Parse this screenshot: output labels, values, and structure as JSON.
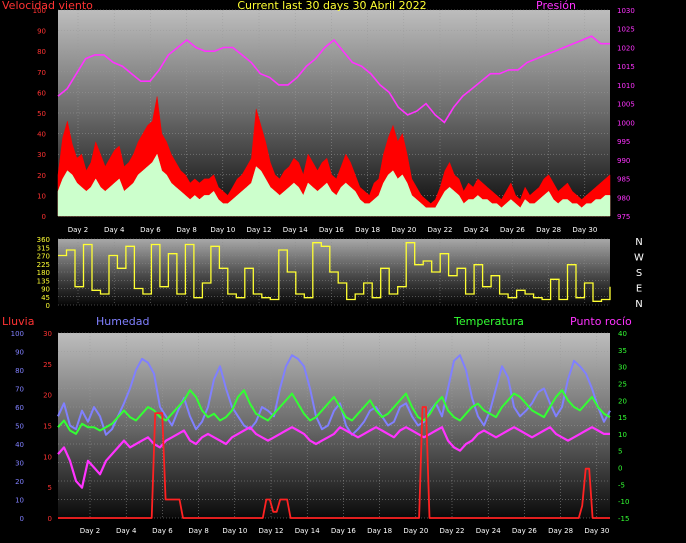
{
  "header": {
    "title": "Current last 30 days 30 Abril 2022",
    "label_left": "Velocidad viento",
    "label_right": "Presión"
  },
  "labels": {
    "lluvia": "Lluvia",
    "humedad": "Humedad",
    "temperatura": "Temperatura",
    "punto_rocio": "Punto rocío"
  },
  "colors": {
    "wind_gust": "#ff0000",
    "wind_avg": "#ccffcc",
    "pressure": "#ff33ff",
    "direction": "#ffff33",
    "rain": "#ff2222",
    "humidity": "#8080ff",
    "temperature": "#33ff33",
    "dewpoint": "#ff33ff",
    "axis_text_left": "#ff3333",
    "axis_text_right": "#ff33ff",
    "axis_hum": "#8080ff",
    "axis_temp": "#33ff33"
  },
  "chart_data": [
    {
      "type": "area",
      "title": "Current last 30 days 30 Abril 2022",
      "x_tick_labels": [
        "Day 2",
        "Day 4",
        "Day 6",
        "Day 8",
        "Day 10",
        "Day 12",
        "Day 14",
        "Day 16",
        "Day 18",
        "Day 20",
        "Day 22",
        "Day 24",
        "Day 26",
        "Day 28",
        "Day 30"
      ],
      "y_left": {
        "label": "Velocidad viento",
        "range": [
          0,
          100
        ],
        "ticks": [
          "0",
          "10",
          "20",
          "30",
          "40",
          "50",
          "60",
          "70",
          "80",
          "90",
          "100"
        ]
      },
      "y_right": {
        "label": "Presión",
        "range": [
          975,
          1030
        ],
        "ticks": [
          "975",
          "980",
          "985",
          "990",
          "995",
          "1000",
          "1005",
          "1010",
          "1015",
          "1020",
          "1025",
          "1030"
        ]
      },
      "series": [
        {
          "key": "gust",
          "values": [
            20,
            38,
            46,
            35,
            28,
            30,
            22,
            26,
            36,
            30,
            24,
            28,
            32,
            34,
            24,
            26,
            30,
            36,
            40,
            44,
            46,
            58,
            40,
            36,
            30,
            26,
            22,
            20,
            16,
            18,
            16,
            18,
            18,
            20,
            14,
            12,
            10,
            14,
            18,
            20,
            24,
            28,
            52,
            44,
            36,
            26,
            20,
            18,
            22,
            24,
            28,
            26,
            20,
            30,
            26,
            22,
            26,
            28,
            20,
            18,
            24,
            30,
            26,
            20,
            14,
            12,
            10,
            16,
            18,
            30,
            38,
            44,
            36,
            40,
            30,
            18,
            14,
            10,
            8,
            6,
            8,
            14,
            22,
            26,
            20,
            18,
            12,
            16,
            14,
            18,
            16,
            14,
            12,
            10,
            8,
            12,
            16,
            10,
            8,
            14,
            10,
            12,
            14,
            18,
            20,
            16,
            12,
            14,
            16,
            12,
            10,
            8,
            10,
            12,
            14,
            16,
            18,
            20
          ]
        },
        {
          "key": "avg",
          "values": [
            12,
            18,
            22,
            20,
            16,
            14,
            12,
            14,
            18,
            14,
            12,
            14,
            16,
            18,
            12,
            14,
            16,
            20,
            22,
            24,
            26,
            30,
            22,
            20,
            16,
            14,
            12,
            10,
            8,
            10,
            8,
            10,
            10,
            12,
            8,
            6,
            6,
            8,
            10,
            12,
            14,
            16,
            24,
            22,
            18,
            14,
            12,
            10,
            12,
            14,
            16,
            14,
            10,
            16,
            14,
            12,
            14,
            16,
            12,
            10,
            14,
            16,
            14,
            12,
            8,
            6,
            6,
            8,
            10,
            16,
            20,
            22,
            18,
            20,
            16,
            10,
            8,
            6,
            4,
            4,
            4,
            8,
            12,
            14,
            12,
            10,
            6,
            8,
            8,
            10,
            8,
            8,
            6,
            6,
            4,
            6,
            8,
            6,
            4,
            8,
            6,
            6,
            8,
            10,
            12,
            8,
            6,
            8,
            8,
            6,
            6,
            4,
            6,
            6,
            8,
            8,
            10,
            10
          ]
        },
        {
          "key": "pressure",
          "values": [
            1007,
            1009,
            1013,
            1017,
            1018,
            1018,
            1016,
            1015,
            1013,
            1011,
            1011,
            1014,
            1018,
            1020,
            1022,
            1020,
            1019,
            1019,
            1020,
            1020,
            1018,
            1016,
            1013,
            1012,
            1010,
            1010,
            1012,
            1015,
            1017,
            1020,
            1022,
            1019,
            1016,
            1015,
            1013,
            1010,
            1008,
            1004,
            1002,
            1003,
            1005,
            1002,
            1000,
            1004,
            1007,
            1009,
            1011,
            1013,
            1013,
            1014,
            1014,
            1016,
            1017,
            1018,
            1019,
            1020,
            1021,
            1022,
            1023,
            1021,
            1021
          ]
        }
      ]
    },
    {
      "type": "line",
      "title": "",
      "y_left": {
        "range": [
          0,
          360
        ],
        "ticks": [
          "0",
          "45",
          "90",
          "135",
          "180",
          "225",
          "270",
          "315",
          "360"
        ]
      },
      "direction_labels": [
        "N",
        "W",
        "S",
        "E",
        "N"
      ],
      "series": [
        {
          "key": "direction",
          "values": [
            270,
            300,
            100,
            330,
            80,
            60,
            270,
            200,
            320,
            90,
            60,
            330,
            100,
            280,
            60,
            330,
            40,
            120,
            320,
            200,
            60,
            40,
            200,
            60,
            40,
            30,
            300,
            180,
            60,
            40,
            340,
            320,
            180,
            120,
            30,
            60,
            120,
            40,
            200,
            60,
            100,
            340,
            220,
            240,
            180,
            280,
            160,
            200,
            60,
            220,
            100,
            160,
            60,
            40,
            80,
            60,
            40,
            30,
            140,
            30,
            220,
            40,
            120,
            20,
            30,
            100
          ]
        }
      ]
    },
    {
      "type": "line",
      "title": "",
      "x_tick_labels": [
        "Day 2",
        "Day 4",
        "Day 6",
        "Day 8",
        "Day 10",
        "Day 12",
        "Day 14",
        "Day 16",
        "Day 18",
        "Day 20",
        "Day 22",
        "Day 24",
        "Day 26",
        "Day 28",
        "Day 30"
      ],
      "y_left_outer": {
        "label": "Lluvia",
        "range": [
          0,
          100
        ],
        "ticks": [
          "0",
          "10",
          "20",
          "30",
          "40",
          "50",
          "60",
          "70",
          "80",
          "90",
          "100"
        ]
      },
      "y_left_inner": {
        "label": "Humedad",
        "range": [
          0,
          30
        ],
        "ticks": [
          "0",
          "5",
          "10",
          "15",
          "20",
          "25",
          "30"
        ]
      },
      "y_right": {
        "label": "Temperatura / Punto rocío",
        "range": [
          -15,
          40
        ],
        "ticks": [
          "-15",
          "-10",
          "-5",
          "0",
          "5",
          "10",
          "15",
          "20",
          "25",
          "30",
          "35",
          "40"
        ]
      },
      "series": [
        {
          "key": "rain",
          "values": [
            0,
            0,
            0,
            0,
            0,
            0,
            0,
            0,
            0,
            0,
            0,
            0,
            0,
            0,
            0,
            0,
            0,
            0,
            0,
            0,
            0,
            0,
            0,
            0,
            0,
            0,
            0,
            0,
            17,
            17,
            17,
            3,
            3,
            3,
            3,
            3,
            0,
            0,
            0,
            0,
            0,
            0,
            0,
            0,
            0,
            0,
            0,
            0,
            0,
            0,
            0,
            0,
            0,
            0,
            0,
            0,
            0,
            0,
            0,
            0,
            3,
            3,
            1,
            1,
            3,
            3,
            3,
            0,
            0,
            0,
            0,
            0,
            0,
            0,
            0,
            0,
            0,
            0,
            0,
            0,
            0,
            0,
            0,
            0,
            0,
            0,
            0,
            0,
            0,
            0,
            0,
            0,
            0,
            0,
            0,
            0,
            0,
            0,
            0,
            0,
            0,
            0,
            0,
            0,
            0,
            18,
            18,
            0,
            0,
            0,
            0,
            0,
            0,
            0,
            0,
            0,
            0,
            0,
            0,
            0,
            0,
            0,
            0,
            0,
            0,
            0,
            0,
            0,
            0,
            0,
            0,
            0,
            0,
            0,
            0,
            0,
            0,
            0,
            0,
            0,
            0,
            0,
            0,
            0,
            0,
            0,
            0,
            0,
            0,
            0,
            0,
            2,
            8,
            8,
            0,
            0,
            0,
            0,
            0,
            0
          ]
        },
        {
          "key": "humidity",
          "values": [
            55,
            62,
            50,
            48,
            58,
            52,
            60,
            55,
            45,
            48,
            55,
            62,
            70,
            80,
            86,
            84,
            78,
            60,
            55,
            50,
            58,
            65,
            55,
            48,
            52,
            60,
            75,
            82,
            70,
            60,
            55,
            50,
            48,
            52,
            60,
            58,
            55,
            70,
            82,
            88,
            86,
            82,
            70,
            55,
            48,
            50,
            58,
            62,
            50,
            45,
            48,
            52,
            58,
            60,
            55,
            50,
            52,
            60,
            62,
            55,
            50,
            52,
            58,
            62,
            55,
            70,
            85,
            88,
            80,
            65,
            55,
            50,
            58,
            70,
            82,
            76,
            60,
            55,
            58,
            62,
            68,
            70,
            62,
            55,
            60,
            75,
            85,
            82,
            78,
            70,
            60,
            52,
            58
          ]
        },
        {
          "key": "temperature",
          "values": [
            12,
            14,
            11,
            10,
            13,
            12,
            12,
            11,
            12,
            13,
            15,
            17,
            15,
            14,
            16,
            18,
            17,
            15,
            14,
            16,
            18,
            20,
            23,
            21,
            17,
            15,
            16,
            14,
            15,
            17,
            21,
            23,
            19,
            16,
            15,
            14,
            16,
            18,
            20,
            22,
            19,
            16,
            14,
            15,
            17,
            19,
            21,
            18,
            15,
            14,
            16,
            18,
            20,
            17,
            15,
            16,
            18,
            20,
            22,
            18,
            15,
            14,
            16,
            19,
            21,
            17,
            15,
            14,
            16,
            18,
            19,
            17,
            16,
            15,
            18,
            20,
            22,
            21,
            19,
            17,
            16,
            15,
            18,
            21,
            23,
            20,
            18,
            17,
            19,
            21,
            18,
            16,
            15
          ]
        },
        {
          "key": "dewpoint",
          "values": [
            4,
            6,
            2,
            -4,
            -6,
            2,
            0,
            -2,
            2,
            4,
            6,
            8,
            6,
            7,
            8,
            9,
            7,
            6,
            8,
            9,
            10,
            11,
            8,
            7,
            9,
            10,
            9,
            8,
            7,
            9,
            10,
            11,
            12,
            10,
            9,
            8,
            9,
            10,
            11,
            12,
            11,
            10,
            8,
            7,
            8,
            9,
            10,
            12,
            11,
            10,
            9,
            10,
            11,
            12,
            11,
            10,
            9,
            11,
            12,
            11,
            10,
            9,
            10,
            11,
            12,
            8,
            6,
            5,
            7,
            8,
            10,
            11,
            10,
            9,
            10,
            11,
            12,
            11,
            10,
            9,
            10,
            11,
            12,
            10,
            9,
            8,
            9,
            10,
            11,
            12,
            11,
            10,
            10
          ]
        }
      ]
    }
  ]
}
